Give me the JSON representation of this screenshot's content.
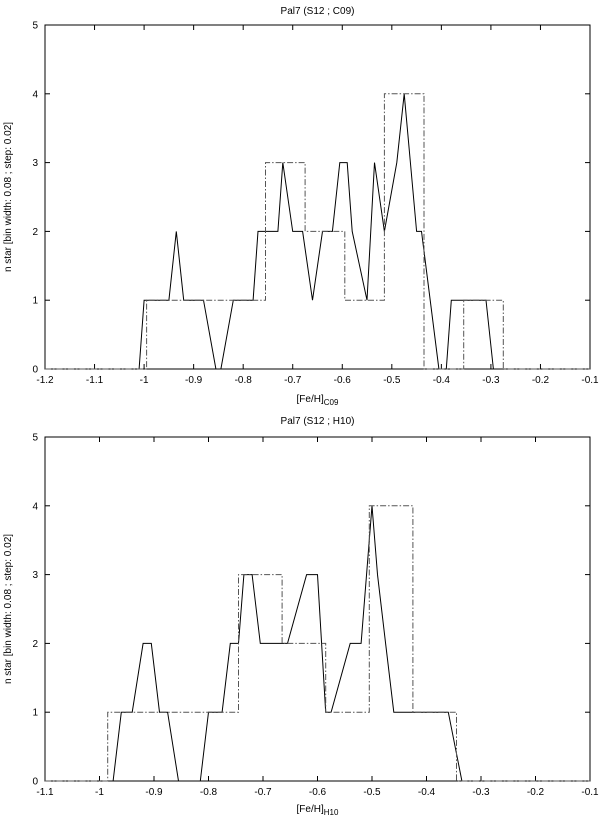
{
  "chart_data": [
    {
      "type": "line",
      "title": "Pal7 (S12 ; C09)",
      "xlabel": "[Fe/H]",
      "xlabel_sub": "C09",
      "ylabel": "n star [bin width: 0.08 ; step: 0.02]",
      "xlim": [
        -1.2,
        -0.1
      ],
      "ylim": [
        0,
        5
      ],
      "xticks": [
        -1.2,
        -1.1,
        -1.0,
        -0.9,
        -0.8,
        -0.7,
        -0.6,
        -0.5,
        -0.4,
        -0.3,
        -0.2,
        -0.1
      ],
      "xtick_labels": [
        "-1.2",
        "-1.1",
        "-1",
        "-0.9",
        "-0.8",
        "-0.7",
        "-0.6",
        "-0.5",
        "-0.4",
        "-0.3",
        "-0.2",
        "-0.1"
      ],
      "yticks": [
        0,
        1,
        2,
        3,
        4,
        5
      ],
      "ytick_labels": [
        "0",
        "1",
        "2",
        "3",
        "4",
        "5"
      ],
      "series": [
        {
          "style": "solid",
          "x": [
            -1.2,
            -1.01,
            -1.0,
            -0.95,
            -0.935,
            -0.92,
            -0.88,
            -0.855,
            -0.845,
            -0.82,
            -0.805,
            -0.78,
            -0.77,
            -0.755,
            -0.745,
            -0.73,
            -0.72,
            -0.7,
            -0.68,
            -0.66,
            -0.64,
            -0.62,
            -0.605,
            -0.59,
            -0.58,
            -0.55,
            -0.535,
            -0.515,
            -0.49,
            -0.475,
            -0.45,
            -0.44,
            -0.405,
            -0.39,
            -0.38,
            -0.35,
            -0.325,
            -0.31,
            -0.295,
            -0.1
          ],
          "y": [
            0,
            0,
            1,
            1,
            2,
            1,
            1,
            0,
            0,
            1,
            1,
            1,
            2,
            2,
            2,
            2,
            3,
            2,
            2,
            1,
            2,
            2,
            3,
            3,
            2,
            1,
            3,
            2,
            3,
            4,
            2,
            2,
            0,
            0,
            1,
            1,
            1,
            1,
            0,
            0
          ]
        },
        {
          "style": "dash-dot",
          "x": [
            -1.2,
            -0.995,
            -0.995,
            -0.955,
            -0.955,
            -0.755,
            -0.755,
            -0.675,
            -0.675,
            -0.595,
            -0.595,
            -0.515,
            -0.515,
            -0.435,
            -0.435,
            -0.355,
            -0.355,
            -0.275,
            -0.275,
            -0.1
          ],
          "y": [
            0,
            0,
            1,
            1,
            1,
            1,
            3,
            3,
            2,
            2,
            1,
            1,
            4,
            4,
            0,
            0,
            1,
            1,
            0,
            0
          ]
        }
      ]
    },
    {
      "type": "line",
      "title": "Pal7 (S12 ; H10)",
      "xlabel": "[Fe/H]",
      "xlabel_sub": "H10",
      "ylabel": "n star [bin width: 0.08 ; step: 0.02]",
      "xlim": [
        -1.1,
        -0.1
      ],
      "ylim": [
        0,
        5
      ],
      "xticks": [
        -1.1,
        -1.0,
        -0.9,
        -0.8,
        -0.7,
        -0.6,
        -0.5,
        -0.4,
        -0.3,
        -0.2,
        -0.1
      ],
      "xtick_labels": [
        "-1.1",
        "-1",
        "-0.9",
        "-0.8",
        "-0.7",
        "-0.6",
        "-0.5",
        "-0.4",
        "-0.3",
        "-0.2",
        "-0.1"
      ],
      "yticks": [
        0,
        1,
        2,
        3,
        4,
        5
      ],
      "ytick_labels": [
        "0",
        "1",
        "2",
        "3",
        "4",
        "5"
      ],
      "series": [
        {
          "style": "solid",
          "x": [
            -1.1,
            -0.975,
            -0.96,
            -0.94,
            -0.92,
            -0.905,
            -0.89,
            -0.875,
            -0.855,
            -0.835,
            -0.815,
            -0.8,
            -0.775,
            -0.76,
            -0.745,
            -0.735,
            -0.72,
            -0.705,
            -0.69,
            -0.675,
            -0.655,
            -0.62,
            -0.6,
            -0.585,
            -0.575,
            -0.54,
            -0.52,
            -0.5,
            -0.49,
            -0.475,
            -0.46,
            -0.435,
            -0.42,
            -0.39,
            -0.36,
            -0.335,
            -0.32,
            -0.3,
            -0.1
          ],
          "y": [
            0,
            0,
            1,
            1,
            2,
            2,
            1,
            1,
            0,
            0,
            0,
            1,
            1,
            2,
            2,
            3,
            3,
            2,
            2,
            2,
            2,
            3,
            3,
            1,
            1,
            2,
            2,
            4,
            3,
            2,
            1,
            1,
            1,
            1,
            1,
            0,
            0,
            0,
            0
          ],
          "x_fixed": true
        },
        {
          "style": "dash-dot",
          "x": [
            -1.1,
            -0.985,
            -0.985,
            -0.745,
            -0.745,
            -0.665,
            -0.665,
            -0.585,
            -0.585,
            -0.505,
            -0.505,
            -0.425,
            -0.425,
            -0.345,
            -0.345,
            -0.1
          ],
          "y": [
            0,
            0,
            1,
            1,
            3,
            3,
            2,
            2,
            1,
            1,
            4,
            4,
            1,
            1,
            0,
            0
          ]
        }
      ]
    }
  ]
}
